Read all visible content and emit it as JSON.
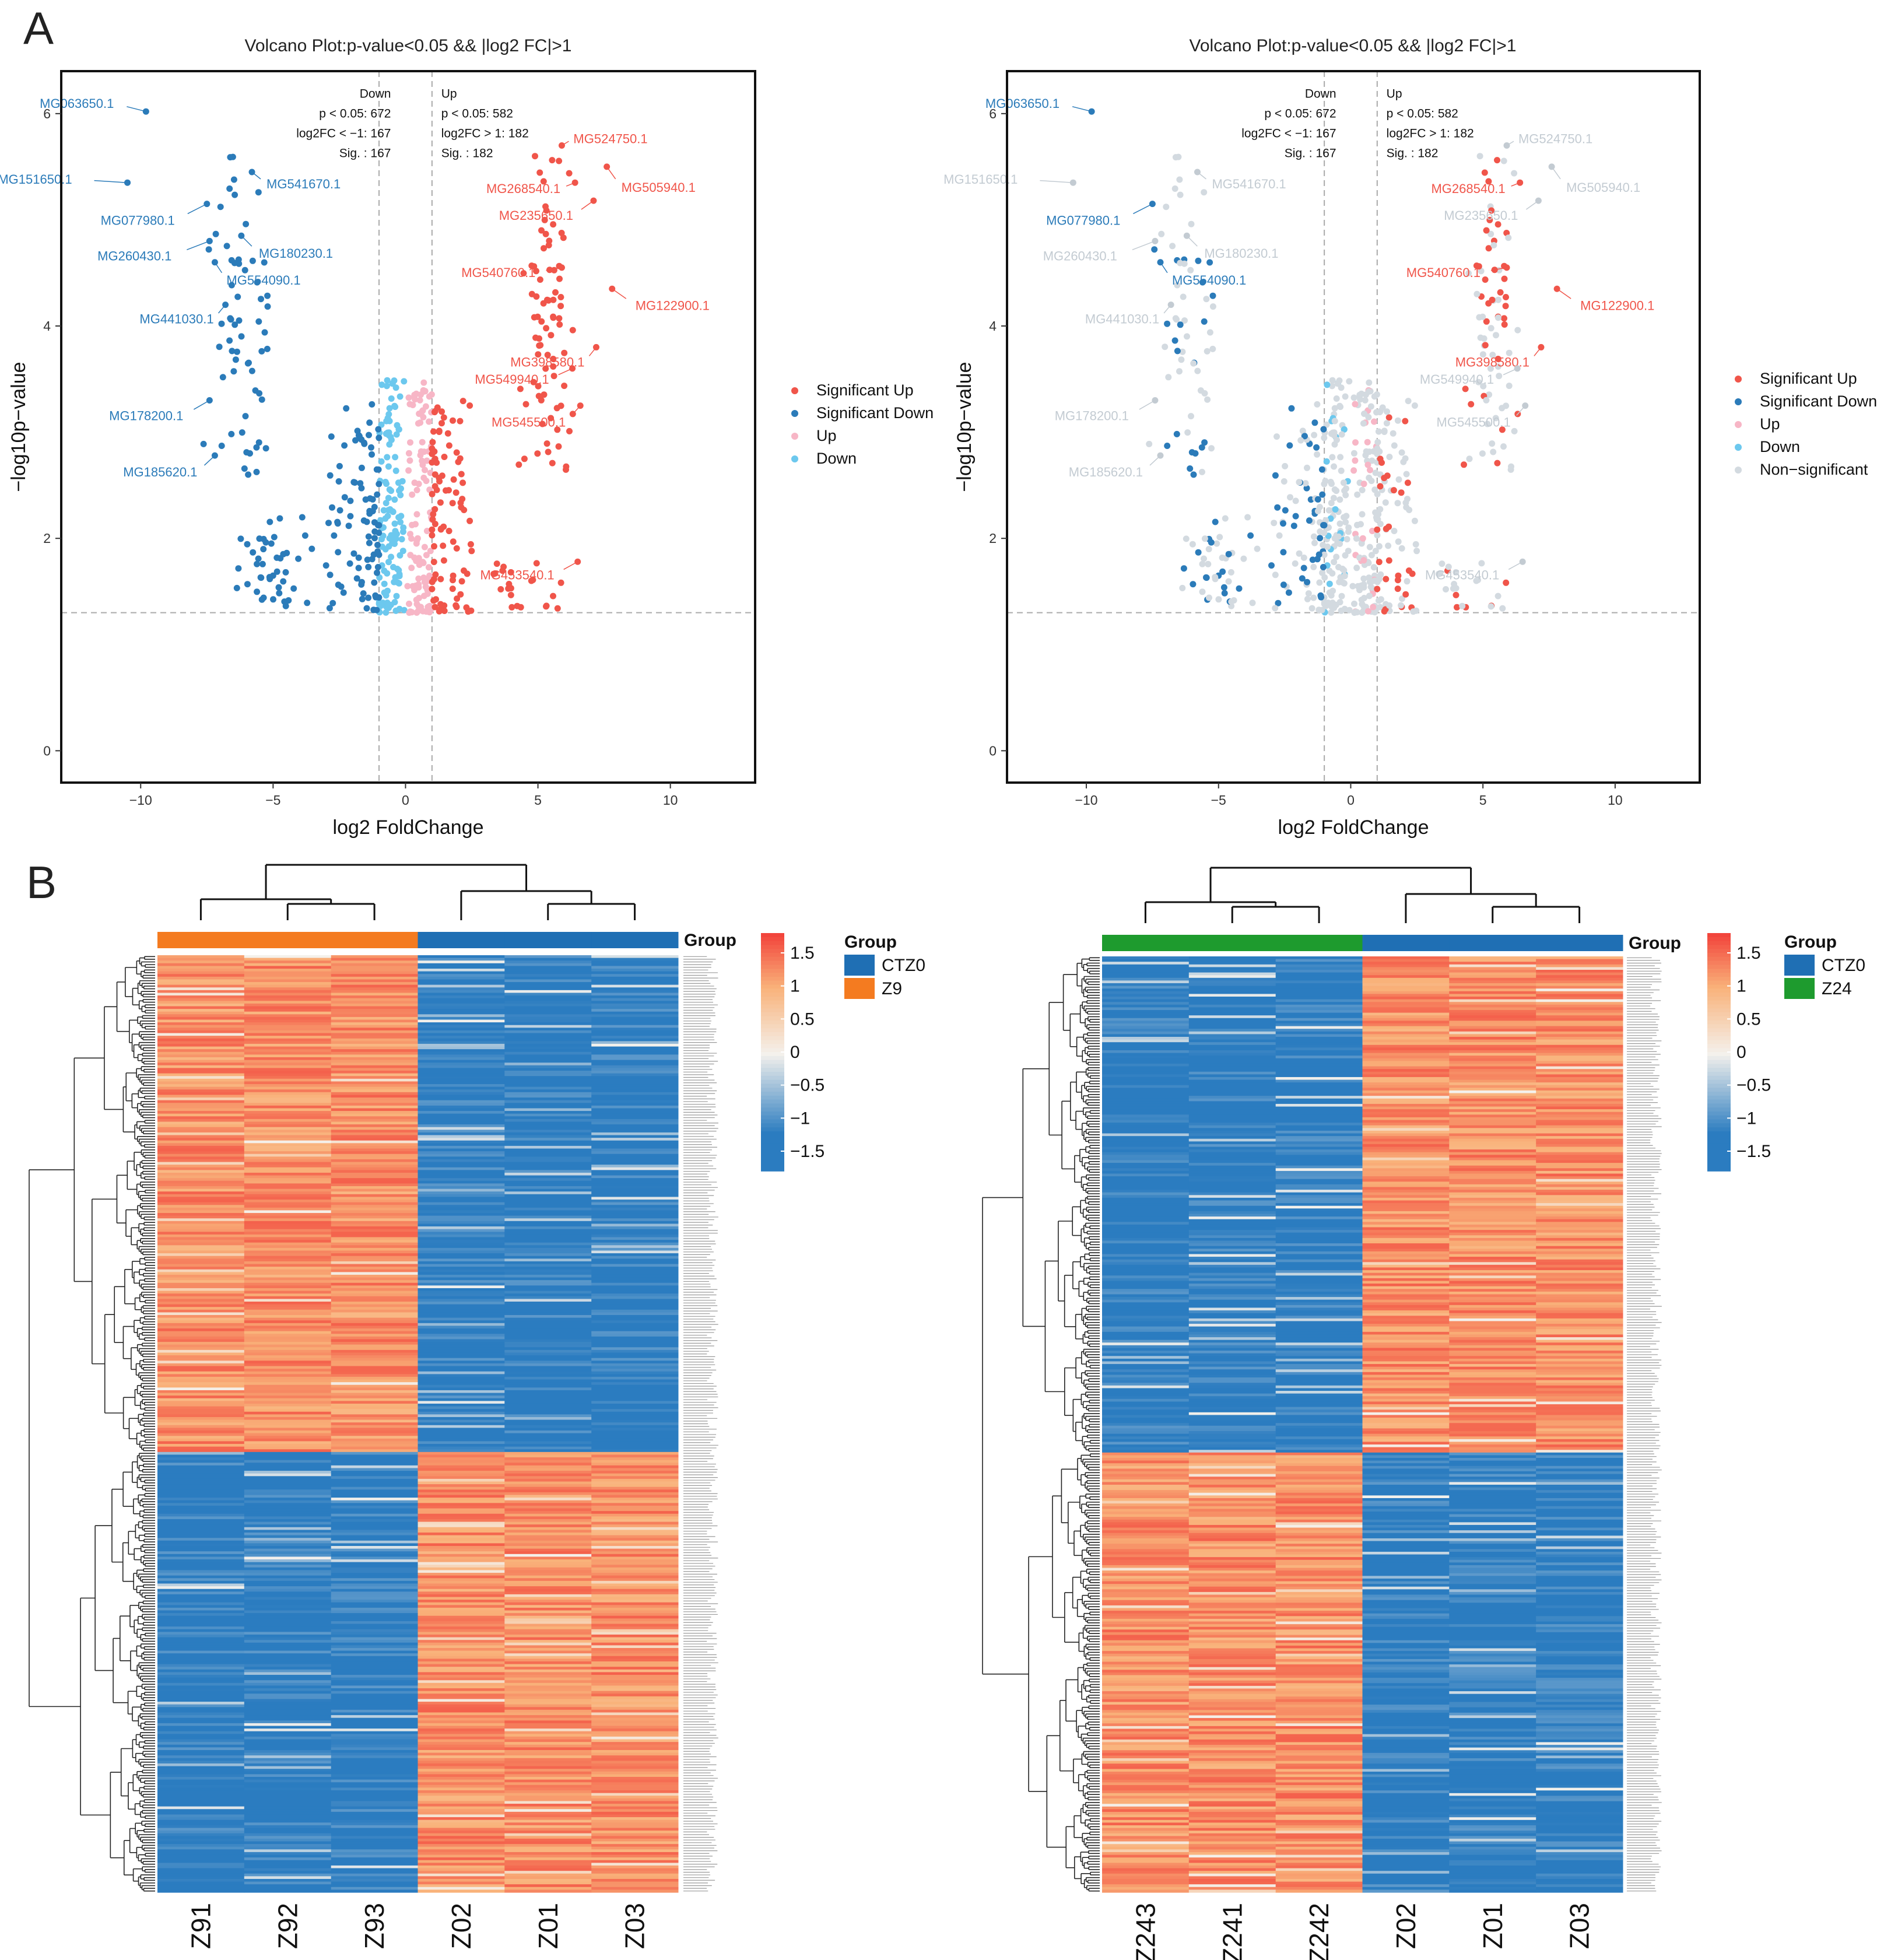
{
  "panel_letters": [
    "A",
    "B"
  ],
  "colors": {
    "sig_up": "#f0554a",
    "sig_down": "#2b7bb9",
    "up": "#f7b6c6",
    "down": "#6cc8ee",
    "nonsig": "#d3dae0",
    "ctz0": "#1f6fb4",
    "z9": "#f47b20",
    "z24": "#1e9b2e",
    "heat_low": "#2b7cc0",
    "heat_mid": "#f4f1ec",
    "heat_high": "#f2453c"
  },
  "chart_data": [
    {
      "id": "volcano-1",
      "type": "scatter",
      "title": "Volcano Plot:p-value<0.05 && |log2 FC|>1",
      "xlabel": "log2 FoldChange",
      "ylabel": "−log10p−value",
      "xlim": [
        -13,
        13.2
      ],
      "ylim": [
        -0.3,
        6.4
      ],
      "xticks": [
        -10,
        -5,
        0,
        5,
        10
      ],
      "xtick_labels": [
        "−10",
        "−5",
        "0",
        "5",
        "10"
      ],
      "yticks": [
        0,
        2,
        4,
        6
      ],
      "thresholds": {
        "x": [
          -1,
          1
        ],
        "y": 1.3
      },
      "annotation_down": [
        "Down",
        "p < 0.05: 672",
        "log2FC < −1: 167",
        "Sig. : 167"
      ],
      "annotation_up": [
        "Up",
        "p < 0.05: 582",
        "log2FC > 1: 182",
        "Sig. : 182"
      ],
      "legend": [
        "Significant Up",
        "Significant Down",
        "Up",
        "Down"
      ],
      "legend_position": "right",
      "colored_all": true,
      "labels": [
        {
          "text": "MG063650.1",
          "x": -9.8,
          "y": 6.02,
          "side": "down",
          "faded": false
        },
        {
          "text": "MG151650.1",
          "x": -10.5,
          "y": 5.35,
          "side": "down",
          "faded": false
        },
        {
          "text": "MG541670.1",
          "x": -5.8,
          "y": 5.45,
          "side": "down",
          "faded": false
        },
        {
          "text": "MG077980.1",
          "x": -7.5,
          "y": 5.15,
          "side": "down",
          "faded": false
        },
        {
          "text": "MG180230.1",
          "x": -6.2,
          "y": 4.85,
          "side": "down",
          "faded": false
        },
        {
          "text": "MG260430.1",
          "x": -7.4,
          "y": 4.8,
          "side": "down",
          "faded": false
        },
        {
          "text": "MG554090.1",
          "x": -7.2,
          "y": 4.6,
          "side": "down",
          "faded": false
        },
        {
          "text": "MG441030.1",
          "x": -6.8,
          "y": 4.2,
          "side": "down",
          "faded": false
        },
        {
          "text": "MG178200.1",
          "x": -7.4,
          "y": 3.3,
          "side": "down",
          "faded": false
        },
        {
          "text": "MG185620.1",
          "x": -7.2,
          "y": 2.78,
          "side": "down",
          "faded": false
        },
        {
          "text": "MG524750.1",
          "x": 5.9,
          "y": 5.7,
          "side": "up",
          "faded": false
        },
        {
          "text": "MG505940.1",
          "x": 7.6,
          "y": 5.5,
          "side": "up",
          "faded": false
        },
        {
          "text": "MG268540.1",
          "x": 6.4,
          "y": 5.35,
          "side": "up",
          "faded": false
        },
        {
          "text": "MG235650.1",
          "x": 7.1,
          "y": 5.18,
          "side": "up",
          "faded": false
        },
        {
          "text": "MG540760.1",
          "x": 5.9,
          "y": 4.55,
          "side": "up",
          "faded": false
        },
        {
          "text": "MG122900.1",
          "x": 7.8,
          "y": 4.35,
          "side": "up",
          "faded": false
        },
        {
          "text": "MG398580.1",
          "x": 7.2,
          "y": 3.8,
          "side": "up",
          "faded": false
        },
        {
          "text": "MG549940.1",
          "x": 6.3,
          "y": 3.6,
          "side": "up",
          "faded": false
        },
        {
          "text": "MG545500.1",
          "x": 6.6,
          "y": 3.25,
          "side": "up",
          "faded": false
        },
        {
          "text": "MG453540.1",
          "x": 6.5,
          "y": 1.78,
          "side": "up",
          "faded": false
        }
      ]
    },
    {
      "id": "volcano-2",
      "type": "scatter",
      "title": "Volcano Plot:p-value<0.05 && |log2 FC|>1",
      "xlabel": "log2 FoldChange",
      "ylabel": "−log10p−value",
      "xlim": [
        -13,
        13.2
      ],
      "ylim": [
        -0.3,
        6.4
      ],
      "xticks": [
        -10,
        -5,
        0,
        5,
        10
      ],
      "xtick_labels": [
        "−10",
        "−5",
        "0",
        "5",
        "10"
      ],
      "yticks": [
        0,
        2,
        4,
        6
      ],
      "thresholds": {
        "x": [
          -1,
          1
        ],
        "y": 1.3
      },
      "annotation_down": [
        "Down",
        "p < 0.05: 672",
        "log2FC < −1: 167",
        "Sig. : 167"
      ],
      "annotation_up": [
        "Up",
        "p < 0.05: 582",
        "log2FC > 1: 182",
        "Sig. : 182"
      ],
      "legend": [
        "Significant Up",
        "Significant Down",
        "Up",
        "Down",
        "Non−significant"
      ],
      "legend_position": "right",
      "colored_all": false,
      "labels": [
        {
          "text": "MG063650.1",
          "x": -9.8,
          "y": 6.02,
          "side": "down",
          "faded": false
        },
        {
          "text": "MG151650.1",
          "x": -10.5,
          "y": 5.35,
          "side": "down",
          "faded": true
        },
        {
          "text": "MG541670.1",
          "x": -5.8,
          "y": 5.45,
          "side": "down",
          "faded": true
        },
        {
          "text": "MG077980.1",
          "x": -7.5,
          "y": 5.15,
          "side": "down",
          "faded": false
        },
        {
          "text": "MG180230.1",
          "x": -6.2,
          "y": 4.85,
          "side": "down",
          "faded": true
        },
        {
          "text": "MG260430.1",
          "x": -7.4,
          "y": 4.8,
          "side": "down",
          "faded": true
        },
        {
          "text": "MG554090.1",
          "x": -7.2,
          "y": 4.6,
          "side": "down",
          "faded": false
        },
        {
          "text": "MG441030.1",
          "x": -6.8,
          "y": 4.2,
          "side": "down",
          "faded": true
        },
        {
          "text": "MG178200.1",
          "x": -7.4,
          "y": 3.3,
          "side": "down",
          "faded": true
        },
        {
          "text": "MG185620.1",
          "x": -7.2,
          "y": 2.78,
          "side": "down",
          "faded": true
        },
        {
          "text": "MG524750.1",
          "x": 5.9,
          "y": 5.7,
          "side": "up",
          "faded": true
        },
        {
          "text": "MG505940.1",
          "x": 7.6,
          "y": 5.5,
          "side": "up",
          "faded": true
        },
        {
          "text": "MG268540.1",
          "x": 6.4,
          "y": 5.35,
          "side": "up",
          "faded": false
        },
        {
          "text": "MG235650.1",
          "x": 7.1,
          "y": 5.18,
          "side": "up",
          "faded": true
        },
        {
          "text": "MG540760.1",
          "x": 5.9,
          "y": 4.55,
          "side": "up",
          "faded": false
        },
        {
          "text": "MG122900.1",
          "x": 7.8,
          "y": 4.35,
          "side": "up",
          "faded": false
        },
        {
          "text": "MG398580.1",
          "x": 7.2,
          "y": 3.8,
          "side": "up",
          "faded": false
        },
        {
          "text": "MG549940.1",
          "x": 6.3,
          "y": 3.6,
          "side": "up",
          "faded": true
        },
        {
          "text": "MG545500.1",
          "x": 6.6,
          "y": 3.25,
          "side": "up",
          "faded": true
        },
        {
          "text": "MG453540.1",
          "x": 6.5,
          "y": 1.78,
          "side": "up",
          "faded": true
        }
      ]
    },
    {
      "id": "heatmap-1",
      "type": "heatmap",
      "columns": [
        "Z91",
        "Z92",
        "Z93",
        "Z02",
        "Z01",
        "Z03"
      ],
      "column_groups": [
        "Z9",
        "Z9",
        "Z9",
        "CTZ0",
        "CTZ0",
        "CTZ0"
      ],
      "group_title": "Group",
      "group_legend": [
        {
          "name": "CTZ0",
          "color": "#1f6fb4"
        },
        {
          "name": "Z9",
          "color": "#f47b20"
        }
      ],
      "colorbar": {
        "range": [
          -1.8,
          1.8
        ],
        "ticks": [
          1.5,
          1,
          0.5,
          0,
          -0.5,
          -1,
          -1.5
        ],
        "tick_labels": [
          "1.5",
          "1",
          "0.5",
          "0",
          "−0.5",
          "−1",
          "−1.5"
        ]
      },
      "row_count": 349,
      "row_blocks": [
        {
          "fraction": 0.53,
          "pattern": [
            1,
            1,
            1,
            -1,
            -1,
            -1
          ]
        },
        {
          "fraction": 0.47,
          "pattern": [
            -1,
            -1,
            -1,
            1,
            1,
            1
          ]
        }
      ]
    },
    {
      "id": "heatmap-2",
      "type": "heatmap",
      "columns": [
        "Z243",
        "Z241",
        "Z242",
        "Z02",
        "Z01",
        "Z03"
      ],
      "column_groups": [
        "Z24",
        "Z24",
        "Z24",
        "CTZ0",
        "CTZ0",
        "CTZ0"
      ],
      "group_title": "Group",
      "group_legend": [
        {
          "name": "CTZ0",
          "color": "#1f6fb4"
        },
        {
          "name": "Z24",
          "color": "#1e9b2e"
        }
      ],
      "colorbar": {
        "range": [
          -1.8,
          1.8
        ],
        "ticks": [
          1.5,
          1,
          0.5,
          0,
          -0.5,
          -1,
          -1.5
        ],
        "tick_labels": [
          "1.5",
          "1",
          "0.5",
          "0",
          "−0.5",
          "−1",
          "−1.5"
        ]
      },
      "row_count": 349,
      "row_blocks": [
        {
          "fraction": 0.53,
          "pattern": [
            -1,
            -1,
            -1,
            1,
            1,
            1
          ]
        },
        {
          "fraction": 0.47,
          "pattern": [
            1,
            1,
            1,
            -1,
            -1,
            -1
          ]
        }
      ]
    }
  ]
}
